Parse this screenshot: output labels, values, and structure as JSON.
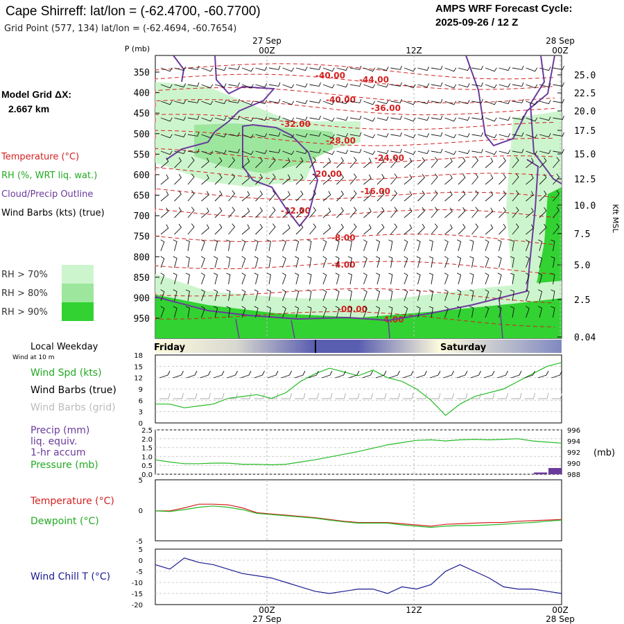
{
  "header": {
    "title": "Cape Shirreff:  lat/lon = (-62.4700, -60.7700)",
    "grid_point": "Grid Point (577, 134) lat/lon = (-62.4694, -60.7654)",
    "cycle_label": "AMPS WRF Forecast Cycle:",
    "cycle_value": "2025-09-26 / 12  Z"
  },
  "side": {
    "model_grid": "Model Grid ΔX:",
    "model_res": "2.667 km",
    "temperature": "Temperature (°C)",
    "rh": "RH (%, WRT liq. wat.)",
    "cloud": "Cloud/Precip Outline",
    "wind_barbs": "Wind Barbs (kts) (true)",
    "rh70": "RH > 70%",
    "rh80": "RH > 80%",
    "rh90": "RH > 90%",
    "local_weekday": "Local Weekday",
    "wind_10m": "Wind at 10 m",
    "wind_spd": "Wind Spd (kts)",
    "wind_barbs_true": "Wind Barbs (true)",
    "wind_barbs_grid": "Wind Barbs (grid)",
    "precip": "Precip (mm)",
    "liq": "liq. equiv.",
    "accum": "1-hr accum",
    "pressure": "Pressure (mb)",
    "temp2": "Temperature (°C)",
    "dewpoint": "Dewpoint (°C)",
    "windchill": "Wind Chill T (°C)"
  },
  "colors": {
    "temp": "#d42020",
    "green": "#22bb22",
    "purple": "#6a3a9c",
    "navy": "#1a1a90",
    "rh70": "#cdf5cd",
    "rh80": "#9de69d",
    "rh90": "#32d232"
  },
  "chart_data": [
    {
      "type": "contour",
      "name": "vertical-cross-section",
      "p_axis_label": "P (mb)",
      "kft_label": "Kft MSL",
      "pressure_ticks": [
        "350",
        "400",
        "450",
        "500",
        "550",
        "600",
        "650",
        "700",
        "750",
        "800",
        "850",
        "900",
        "950"
      ],
      "kft_ticks": [
        "25.0",
        "22.5",
        "20.0",
        "17.5",
        "15.0",
        "12.5",
        "10.0",
        "7.5",
        "5.0",
        "2.5",
        "0.04"
      ],
      "top_times": [
        {
          "date": "27 Sep",
          "time": "00Z"
        },
        {
          "date": "",
          "time": "12Z"
        },
        {
          "date": "28 Sep",
          "time": "00Z"
        }
      ],
      "isotherm_labels": [
        "-40.00",
        "-44.00",
        "-40.00",
        "-36.00",
        "-32.00",
        "-28.00",
        "-24.00",
        "-20.00",
        "-16.00",
        "-12.00",
        "-8.00",
        "-4.00",
        "-00.00",
        "-4.00"
      ]
    },
    {
      "type": "band",
      "name": "local-weekday",
      "labels": [
        "Friday",
        "Saturday"
      ]
    },
    {
      "type": "line",
      "name": "wind-speed",
      "ylim": [
        0,
        18
      ],
      "yticks": [
        "18",
        "15",
        "12",
        "9",
        "6",
        "3",
        "0"
      ],
      "x_hours": [
        0,
        3,
        6,
        9,
        12,
        15,
        18,
        21,
        24,
        27,
        30,
        33,
        36,
        39,
        42,
        45,
        48,
        51,
        54,
        57,
        60,
        63,
        66,
        69,
        72,
        75,
        78,
        81,
        84
      ],
      "values": [
        5,
        5,
        4,
        4.5,
        5,
        6.5,
        7,
        7.5,
        6.5,
        8,
        11,
        13,
        14.5,
        13.5,
        12.5,
        14,
        12,
        11,
        9,
        6,
        2,
        5,
        7,
        8,
        9,
        11,
        13,
        15,
        16
      ]
    },
    {
      "type": "line",
      "name": "precip-pressure",
      "ylim_precip": [
        0,
        2.5
      ],
      "yticks_left": [
        "2.5",
        "2.0",
        "1.5",
        "1.0",
        "0.5",
        "0.0"
      ],
      "yticks_right": [
        "996",
        "994",
        "992",
        "990",
        "988"
      ],
      "units_right": "(mb)",
      "ylim_pressure": [
        988,
        996
      ],
      "x_hours": [
        0,
        3,
        6,
        9,
        12,
        15,
        18,
        21,
        24,
        27,
        30,
        33,
        36,
        39,
        42,
        45,
        48,
        51,
        54,
        57,
        60,
        63,
        66,
        69,
        72,
        75,
        78,
        81,
        84
      ],
      "pressure": [
        990.6,
        990.2,
        989.9,
        989.9,
        990,
        990,
        989.8,
        989.8,
        989.7,
        989.8,
        990.2,
        990.6,
        991.1,
        991.6,
        992.1,
        992.7,
        993.3,
        993.7,
        994.1,
        994.2,
        994.0,
        994.2,
        994.3,
        994.2,
        994.3,
        994.4,
        994.0,
        993.8,
        993.6
      ],
      "precip_bars": [
        {
          "hour": 81,
          "value": 0.1
        },
        {
          "hour": 84,
          "value": 0.35
        }
      ]
    },
    {
      "type": "line",
      "name": "temperature-dewpoint",
      "ylim": [
        -5,
        5
      ],
      "yticks": [
        "5",
        "0",
        "-5"
      ],
      "x_hours": [
        0,
        3,
        6,
        9,
        12,
        15,
        18,
        21,
        24,
        27,
        30,
        33,
        36,
        39,
        42,
        45,
        48,
        51,
        54,
        57,
        60,
        63,
        66,
        69,
        72,
        75,
        78,
        81,
        84
      ],
      "temperature": [
        -0.1,
        -0.1,
        0.4,
        1,
        1,
        0.9,
        0.4,
        -0.4,
        -0.6,
        -0.8,
        -1,
        -1.2,
        -1.5,
        -1.8,
        -2,
        -2,
        -2,
        -2.2,
        -2.4,
        -2.6,
        -2.3,
        -2.2,
        -2.1,
        -2,
        -2,
        -1.8,
        -1.7,
        -1.6,
        -1.5
      ],
      "dewpoint": [
        -0.1,
        -0.2,
        0.1,
        0.5,
        0.7,
        0.5,
        0.1,
        -0.5,
        -0.7,
        -0.9,
        -1.1,
        -1.3,
        -1.6,
        -1.9,
        -2.1,
        -2.1,
        -2.1,
        -2.4,
        -2.6,
        -2.8,
        -2.6,
        -2.5,
        -2.5,
        -2.4,
        -2.3,
        -2.1,
        -2,
        -1.8,
        -1.6
      ]
    },
    {
      "type": "line",
      "name": "wind-chill",
      "ylim": [
        -20,
        5
      ],
      "yticks": [
        "5",
        "0",
        "-5",
        "-10",
        "-15",
        "-20"
      ],
      "x_labels": [
        {
          "time": "00Z",
          "date": "27 Sep"
        },
        {
          "time": "12Z",
          "date": ""
        },
        {
          "time": "00Z",
          "date": "28 Sep"
        }
      ],
      "x_hours": [
        0,
        3,
        6,
        9,
        12,
        15,
        18,
        21,
        24,
        27,
        30,
        33,
        36,
        39,
        42,
        45,
        48,
        51,
        54,
        57,
        60,
        63,
        66,
        69,
        72,
        75,
        78,
        81,
        84
      ],
      "values": [
        -2,
        -4,
        1,
        -1,
        -2,
        -4,
        -6,
        -7,
        -8,
        -10,
        -12,
        -14,
        -15,
        -14,
        -13,
        -13,
        -15,
        -12,
        -13,
        -11,
        -5,
        -2,
        -5,
        -8,
        -12,
        -13,
        -13,
        -14,
        -15
      ]
    }
  ]
}
